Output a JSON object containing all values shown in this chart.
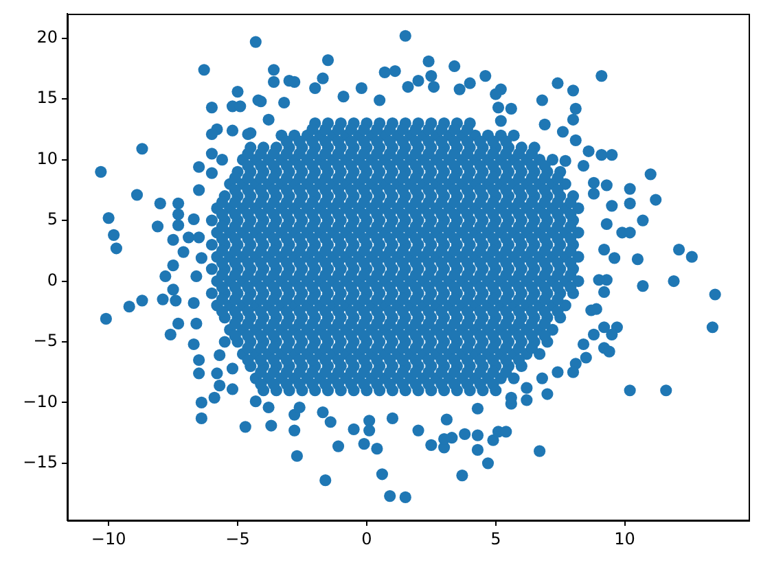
{
  "chart_data": {
    "type": "scatter",
    "color": "#1f77b4",
    "marker": "circle",
    "xlim": [
      -11.6,
      14.8
    ],
    "ylim": [
      -19.7,
      22.0
    ],
    "xticks": [
      {
        "value": -10,
        "label": "−10"
      },
      {
        "value": -5,
        "label": "−5"
      },
      0,
      5,
      10
    ],
    "yticks": [
      {
        "value": -15,
        "label": "−15"
      },
      {
        "value": -10,
        "label": "−10"
      },
      {
        "value": -5,
        "label": "−5"
      },
      0,
      5,
      10,
      15,
      20
    ],
    "x": [
      -2,
      -1.5,
      -1,
      -0.5,
      0,
      0.5,
      1,
      1.5,
      2,
      2.5,
      3,
      3.5,
      4,
      -3.3,
      -2.8,
      -2.3,
      -1.8,
      -1.3,
      -0.8,
      -0.3,
      0.2,
      0.7,
      1.2,
      1.7,
      2.2,
      2.7,
      3.2,
      3.7,
      4.2,
      4.7,
      5.2,
      5.7,
      -4.5,
      -4,
      -3.5,
      -3,
      -2.5,
      -2,
      -1.5,
      -1,
      -0.5,
      0,
      0.5,
      1,
      1.5,
      2,
      2.5,
      3,
      3.5,
      4,
      4.5,
      5,
      5.5,
      6,
      6.5,
      -4.8,
      -4.3,
      -3.8,
      -3.3,
      -2.8,
      -2.3,
      -1.8,
      -1.3,
      -0.8,
      -0.3,
      0.2,
      0.7,
      1.2,
      1.7,
      2.2,
      2.7,
      3.2,
      3.7,
      4.2,
      4.7,
      5.2,
      5.7,
      6.2,
      6.7,
      7.2,
      -5,
      -4.5,
      -4,
      -3.5,
      -3,
      -2.5,
      -2,
      -1.5,
      -1,
      -0.5,
      0,
      0.5,
      1,
      1.5,
      2,
      2.5,
      3,
      3.5,
      4,
      4.5,
      5,
      5.5,
      6,
      6.5,
      7,
      7.5,
      -5.3,
      -4.8,
      -4.3,
      -3.8,
      -3.3,
      -2.8,
      -2.3,
      -1.8,
      -1.3,
      -0.8,
      -0.3,
      0.2,
      0.7,
      1.2,
      1.7,
      2.2,
      2.7,
      3.2,
      3.7,
      4.2,
      4.7,
      5.2,
      5.7,
      6.2,
      6.7,
      7.2,
      7.7,
      -5.5,
      -5,
      -4.5,
      -4,
      -3.5,
      -3,
      -2.5,
      -2,
      -1.5,
      -1,
      -0.5,
      0,
      0.5,
      1,
      1.5,
      2,
      2.5,
      3,
      3.5,
      4,
      4.5,
      5,
      5.5,
      6,
      6.5,
      7,
      7.5,
      8,
      -5.8,
      -5.3,
      -4.8,
      -4.3,
      -3.8,
      -3.3,
      -2.8,
      -2.3,
      -1.8,
      -1.3,
      -0.8,
      -0.3,
      0.2,
      0.7,
      1.2,
      1.7,
      2.2,
      2.7,
      3.2,
      3.7,
      4.2,
      4.7,
      5.2,
      5.7,
      6.2,
      6.7,
      7.2,
      7.7,
      8.2,
      -6,
      -5.5,
      -5,
      -4.5,
      -4,
      -3.5,
      -3,
      -2.5,
      -2,
      -1.5,
      -1,
      -0.5,
      0,
      0.5,
      1,
      1.5,
      2,
      2.5,
      3,
      3.5,
      4,
      4.5,
      5,
      5.5,
      6,
      6.5,
      7,
      7.5,
      8,
      -5.8,
      -5.3,
      -4.8,
      -4.3,
      -3.8,
      -3.3,
      -2.8,
      -2.3,
      -1.8,
      -1.3,
      -0.8,
      -0.3,
      0.2,
      0.7,
      1.2,
      1.7,
      2.2,
      2.7,
      3.2,
      3.7,
      4.2,
      4.7,
      5.2,
      5.7,
      6.2,
      6.7,
      7.2,
      7.7,
      8.2,
      -6,
      -5.5,
      -5,
      -4.5,
      -4,
      -3.5,
      -3,
      -2.5,
      -2,
      -1.5,
      -1,
      -0.5,
      0,
      0.5,
      1,
      1.5,
      2,
      2.5,
      3,
      3.5,
      4,
      4.5,
      5,
      5.5,
      6,
      6.5,
      7,
      7.5,
      8,
      -5.8,
      -5.3,
      -4.8,
      -4.3,
      -3.8,
      -3.3,
      -2.8,
      -2.3,
      -1.8,
      -1.3,
      -0.8,
      -0.3,
      0.2,
      0.7,
      1.2,
      1.7,
      2.2,
      2.7,
      3.2,
      3.7,
      4.2,
      4.7,
      5.2,
      5.7,
      6.2,
      6.7,
      7.2,
      7.7,
      8.2,
      -6,
      -5.5,
      -5,
      -4.5,
      -4,
      -3.5,
      -3,
      -2.5,
      -2,
      -1.5,
      -1,
      -0.5,
      0,
      0.5,
      1,
      1.5,
      2,
      2.5,
      3,
      3.5,
      4,
      4.5,
      5,
      5.5,
      6,
      6.5,
      7,
      7.5,
      8,
      -5.8,
      -5.3,
      -4.8,
      -4.3,
      -3.8,
      -3.3,
      -2.8,
      -2.3,
      -1.8,
      -1.3,
      -0.8,
      -0.3,
      0.2,
      0.7,
      1.2,
      1.7,
      2.2,
      2.7,
      3.2,
      3.7,
      4.2,
      4.7,
      5.2,
      5.7,
      6.2,
      6.7,
      7.2,
      7.7,
      8.2,
      -6,
      -5.5,
      -5,
      -4.5,
      -4,
      -3.5,
      -3,
      -2.5,
      -2,
      -1.5,
      -1,
      -0.5,
      0,
      0.5,
      1,
      1.5,
      2,
      2.5,
      3,
      3.5,
      4,
      4.5,
      5,
      5.5,
      6,
      6.5,
      7,
      7.5,
      8,
      -5.8,
      -5.3,
      -4.8,
      -4.3,
      -3.8,
      -3.3,
      -2.8,
      -2.3,
      -1.8,
      -1.3,
      -0.8,
      -0.3,
      0.2,
      0.7,
      1.2,
      1.7,
      2.2,
      2.7,
      3.2,
      3.7,
      4.2,
      4.7,
      5.2,
      5.7,
      6.2,
      6.7,
      7.2,
      7.7,
      -5.5,
      -5,
      -4.5,
      -4,
      -3.5,
      -3,
      -2.5,
      -2,
      -1.5,
      -1,
      -0.5,
      0,
      0.5,
      1,
      1.5,
      2,
      2.5,
      3,
      3.5,
      4,
      4.5,
      5,
      5.5,
      6,
      6.5,
      7,
      7.5,
      -5.3,
      -4.8,
      -4.3,
      -3.8,
      -3.3,
      -2.8,
      -2.3,
      -1.8,
      -1.3,
      -0.8,
      -0.3,
      0.2,
      0.7,
      1.2,
      1.7,
      2.2,
      2.7,
      3.2,
      3.7,
      4.2,
      4.7,
      5.2,
      5.7,
      6.2,
      6.7,
      7.2,
      -5.5,
      -5,
      -4.5,
      -4,
      -3.5,
      -3,
      -2.5,
      -2,
      -1.5,
      -1,
      -0.5,
      0,
      0.5,
      1,
      1.5,
      2,
      2.5,
      3,
      3.5,
      4,
      4.5,
      5,
      5.5,
      6,
      6.5,
      7,
      -4.8,
      -4.3,
      -3.8,
      -3.3,
      -2.8,
      -2.3,
      -1.8,
      -1.3,
      -0.8,
      -0.3,
      0.2,
      0.7,
      1.2,
      1.7,
      2.2,
      2.7,
      3.2,
      3.7,
      4.2,
      4.7,
      5.2,
      5.7,
      6.2,
      6.7,
      -4.5,
      -4,
      -3.5,
      -3,
      -2.5,
      -2,
      -1.5,
      -1,
      -0.5,
      0,
      0.5,
      1,
      1.5,
      2,
      2.5,
      3,
      3.5,
      4,
      4.5,
      5,
      5.5,
      6,
      -4.3,
      -3.8,
      -3.3,
      -2.8,
      -2.3,
      -1.8,
      -1.3,
      -0.8,
      -0.3,
      0.2,
      0.7,
      1.2,
      1.7,
      2.2,
      2.7,
      3.2,
      3.7,
      4.2,
      4.7,
      5.2,
      5.7,
      -4,
      -3.5,
      -3,
      -2.5,
      -2,
      -1.5,
      -1,
      -0.5,
      0,
      0.5,
      1,
      1.5,
      2,
      2.5,
      3,
      3.5,
      4,
      4.5,
      5,
      -10.3,
      -8.7,
      -8.9,
      -8,
      -10,
      -9.8,
      -9.7,
      -8.1,
      -6.3,
      -4.3,
      -6,
      -5,
      -5.2,
      -4.9,
      -4.2,
      -5.8,
      -6,
      -5.2,
      -4.5,
      -6,
      -5.6,
      -6.5,
      -6,
      -6.5,
      -7.3,
      -7.3,
      -7.3,
      -6.7,
      -7.5,
      -6.9,
      -6.5,
      -7.1,
      -7.5,
      -7.8,
      -6.6,
      -6.4,
      -10.1,
      -9.2,
      -8.7,
      -7.9,
      -7.4,
      -7.5,
      -7.3,
      -7.6,
      -6.7,
      -6.6,
      -6.7,
      -6.5,
      -6.5,
      -5.8,
      -5.7,
      -5.9,
      -6.4,
      -6.4,
      -5.2,
      -4.7,
      -4.3,
      -5.2,
      -5.7,
      -3.8,
      -3.7,
      -2.8,
      -2.7,
      -2.8,
      -2.6,
      -1.6,
      -1.7,
      -1.4,
      -1.1,
      -0.5,
      -0.1,
      0.1,
      0.1,
      0.4,
      0.6,
      0.9,
      1.5,
      1,
      2,
      2.5,
      3,
      3,
      3.3,
      3.8,
      3.7,
      4.3,
      4.3,
      4.7,
      4.9,
      5.1,
      5.4,
      3.1,
      4.3,
      5.6,
      1.5,
      -1.5,
      -3.6,
      -3.6,
      -3,
      -2.8,
      -1.7,
      -2,
      -4.1,
      -3.2,
      -0.2,
      0.7,
      1.1,
      2.4,
      2.5,
      3.4,
      4.6,
      4,
      3.6,
      5.2,
      5,
      5.1,
      5.6,
      5.2,
      2,
      1.6,
      -0.9,
      0.5,
      2.6,
      -4.6,
      -3.8,
      9.1,
      7.4,
      8,
      6.8,
      8.1,
      8,
      6.9,
      7.6,
      8.1,
      8.6,
      9.1,
      9.5,
      7.7,
      8.4,
      11,
      10.2,
      11.2,
      10.2,
      10.7,
      8.8,
      9.3,
      9.5,
      8.8,
      9.9,
      10.2,
      9.3,
      12.1,
      12.6,
      10.5,
      9.6,
      9.2,
      11.9,
      10.7,
      9.3,
      9,
      13.5,
      13.4,
      10.2,
      11.6,
      6.7,
      9.2,
      9.7,
      9.5,
      9.2,
      8.8,
      9.2,
      9.4,
      8.5,
      8.4,
      8.1,
      8,
      7.4,
      6.8,
      7,
      6.2,
      6.2,
      5.6,
      8.7,
      8.9,
      -2.1,
      -1.6,
      -1.1,
      -0.6,
      -0.1,
      0.4,
      0.9,
      1.4,
      1.9,
      2.4,
      2.9,
      3.4,
      3.9,
      -3.1,
      -2.6,
      -2.1,
      -1.6,
      -1.1,
      -0.6,
      -0.1,
      0.4,
      0.9,
      1.4,
      1.9,
      2.4,
      2.9,
      3.4,
      3.9,
      4.4,
      4.9,
      5.4,
      -4.6,
      -4.1,
      -3.6,
      -3.1,
      -2.6,
      -2.1,
      -1.6,
      -1.1,
      -0.6,
      -0.1,
      0.4,
      0.9,
      1.4,
      1.9,
      2.4,
      2.9,
      3.4,
      3.9,
      4.4,
      4.9,
      5.4,
      5.9,
      6.4,
      -4.6,
      -4.1,
      -3.6,
      -3.1,
      -2.6,
      -2.1,
      -1.6,
      -1.1,
      -0.6,
      -0.1,
      0.4,
      0.9,
      1.4,
      1.9,
      2.4,
      2.9,
      3.4,
      3.9,
      4.4,
      4.9,
      5.4,
      5.9,
      6.4,
      6.9,
      -5.1,
      -4.6,
      -4.1,
      -3.6,
      -3.1,
      -2.6,
      -2.1,
      -1.6,
      -1.1,
      -0.6,
      -0.1,
      0.4,
      0.9,
      1.4,
      1.9,
      2.4,
      2.9,
      3.4,
      3.9,
      4.4,
      4.9,
      5.4,
      5.9,
      6.4,
      6.9,
      7.4,
      -5.1,
      -4.6,
      -4.1,
      -3.6,
      -3.1,
      -2.6,
      -2.1,
      -1.6,
      -1.1,
      -0.6,
      -0.1,
      0.4,
      0.9,
      1.4,
      1.9,
      2.4,
      2.9,
      3.4,
      3.9,
      4.4,
      4.9,
      5.4,
      5.9,
      6.4,
      6.9,
      7.4,
      -5.6,
      -5.1,
      -4.6,
      -4.1,
      -3.6,
      -3.1,
      -2.6,
      -2.1,
      -1.6,
      -1.1,
      -0.6,
      -0.1,
      0.4,
      0.9,
      1.4,
      1.9,
      2.4,
      2.9,
      3.4,
      3.9,
      4.4,
      4.9,
      5.4,
      5.9,
      6.4,
      6.9,
      7.4,
      7.9,
      -5.6,
      -5.1,
      -4.6,
      -4.1,
      -3.6,
      -3.1,
      -2.6,
      -2.1,
      -1.6,
      -1.1,
      -0.6,
      -0.1,
      0.4,
      0.9,
      1.4,
      1.9,
      2.4,
      2.9,
      3.4,
      3.9,
      4.4,
      4.9,
      5.4,
      5.9,
      6.4,
      6.9,
      7.4,
      7.9,
      -5.6,
      -5.1,
      -4.6,
      -4.1,
      -3.6,
      -3.1,
      -2.6,
      -2.1,
      -1.6,
      -1.1,
      -0.6,
      -0.1,
      0.4,
      0.9,
      1.4,
      1.9,
      2.4,
      2.9,
      3.4,
      3.9,
      4.4,
      4.9,
      5.4,
      5.9,
      6.4,
      6.9,
      7.4,
      7.9,
      -5.6,
      -5.1,
      -4.6,
      -4.1,
      -3.6,
      -3.1,
      -2.6,
      -2.1,
      -1.6,
      -1.1,
      -0.6,
      -0.1,
      0.4,
      0.9,
      1.4,
      1.9,
      2.4,
      2.9,
      3.4,
      3.9,
      4.4,
      4.9,
      5.4,
      5.9,
      6.4,
      6.9,
      7.4,
      7.9,
      -5.6,
      -5.1,
      -4.6,
      -4.1,
      -3.6,
      -3.1,
      -2.6,
      -2.1,
      -1.6,
      -1.1,
      -0.6,
      -0.1,
      0.4,
      0.9,
      1.4,
      1.9,
      2.4,
      2.9,
      3.4,
      3.9,
      4.4,
      4.9,
      5.4,
      5.9,
      6.4,
      6.9,
      7.4,
      7.9,
      -5.6,
      -5.1,
      -4.6,
      -4.1,
      -3.6,
      -3.1,
      -2.6,
      -2.1,
      -1.6,
      -1.1,
      -0.6,
      -0.1,
      0.4,
      0.9,
      1.4,
      1.9,
      2.4,
      2.9,
      3.4,
      3.9,
      4.4,
      4.9,
      5.4,
      5.9,
      6.4,
      6.9,
      7.4,
      7.9,
      -5.6,
      -5.1,
      -4.6,
      -4.1,
      -3.6,
      -3.1,
      -2.6,
      -2.1,
      -1.6,
      -1.1,
      -0.6,
      -0.1,
      0.4,
      0.9,
      1.4,
      1.9,
      2.4,
      2.9,
      3.4,
      3.9,
      4.4,
      4.9,
      5.4,
      5.9,
      6.4,
      6.9,
      7.4,
      7.9,
      -5.6,
      -5.1,
      -4.6,
      -4.1,
      -3.6,
      -3.1,
      -2.6,
      -2.1,
      -1.6,
      -1.1,
      -0.6,
      -0.1,
      0.4,
      0.9,
      1.4,
      1.9,
      2.4,
      2.9,
      3.4,
      3.9,
      4.4,
      4.9,
      5.4,
      5.9,
      6.4,
      6.9,
      7.4,
      7.9,
      -5.6,
      -5.1,
      -4.6,
      -4.1,
      -3.6,
      -3.1,
      -2.6,
      -2.1,
      -1.6,
      -1.1,
      -0.6,
      -0.1,
      0.4,
      0.9,
      1.4,
      1.9,
      2.4,
      2.9,
      3.4,
      3.9,
      4.4,
      4.9,
      5.4,
      5.9,
      6.4,
      6.9,
      7.4,
      -5.6,
      -5.1,
      -4.6,
      -4.1,
      -3.6,
      -3.1,
      -2.6,
      -2.1,
      -1.6,
      -1.1,
      -0.6,
      -0.1,
      0.4,
      0.9,
      1.4,
      1.9,
      2.4,
      2.9,
      3.4,
      3.9,
      4.4,
      4.9,
      5.4,
      5.9,
      6.4,
      6.9,
      7.4,
      -5.1,
      -4.6,
      -4.1,
      -3.6,
      -3.1,
      -2.6,
      -2.1,
      -1.6,
      -1.1,
      -0.6,
      -0.1,
      0.4,
      0.9,
      1.4,
      1.9,
      2.4,
      2.9,
      3.4,
      3.9,
      4.4,
      4.9,
      5.4,
      5.9,
      6.4,
      6.9,
      -5.1,
      -4.6,
      -4.1,
      -3.6,
      -3.1,
      -2.6,
      -2.1,
      -1.6,
      -1.1,
      -0.6,
      -0.1,
      0.4,
      0.9,
      1.4,
      1.9,
      2.4,
      2.9,
      3.4,
      3.9,
      4.4,
      4.9,
      5.4,
      5.9,
      6.4,
      6.9,
      -4.6,
      -4.1,
      -3.6,
      -3.1,
      -2.6,
      -2.1,
      -1.6,
      -1.1,
      -0.6,
      -0.1,
      0.4,
      0.9,
      1.4,
      1.9,
      2.4,
      2.9,
      3.4,
      3.9,
      4.4,
      4.9,
      5.4,
      5.9,
      6.4,
      -4.6,
      -4.1,
      -3.6,
      -3.1,
      -2.6,
      -2.1,
      -1.6,
      -1.1,
      -0.6,
      -0.1,
      0.4,
      0.9,
      1.4,
      1.9,
      2.4,
      2.9,
      3.4,
      3.9,
      4.4,
      4.9,
      5.4,
      5.9,
      -4.1,
      -3.6,
      -3.1,
      -2.6,
      -2.1,
      -1.6,
      -1.1,
      -0.6,
      -0.1,
      0.4,
      0.9,
      1.4,
      1.9,
      2.4,
      2.9,
      3.4,
      3.9,
      4.4,
      4.9,
      5.4,
      -4.1,
      -3.6,
      -3.1,
      -2.6,
      -2.1,
      -1.6,
      -1.1,
      -0.6,
      -0.1,
      0.4,
      0.9,
      1.4,
      1.9,
      2.4,
      2.9,
      3.4,
      3.9,
      4.4,
      4.9
    ],
    "values": [
      13,
      13,
      13,
      13,
      13,
      13,
      13,
      13,
      13,
      13,
      13,
      13,
      13,
      12,
      12,
      12,
      12,
      12,
      12,
      12,
      12,
      12,
      12,
      12,
      12,
      12,
      12,
      12,
      12,
      12,
      12,
      12,
      11,
      11,
      11,
      11,
      11,
      11,
      11,
      11,
      11,
      11,
      11,
      11,
      11,
      11,
      11,
      11,
      11,
      11,
      11,
      11,
      11,
      11,
      11,
      10,
      10,
      10,
      10,
      10,
      10,
      10,
      10,
      10,
      10,
      10,
      10,
      10,
      10,
      10,
      10,
      10,
      10,
      10,
      10,
      10,
      10,
      10,
      10,
      10,
      9,
      9,
      9,
      9,
      9,
      9,
      9,
      9,
      9,
      9,
      9,
      9,
      9,
      9,
      9,
      9,
      9,
      9,
      9,
      9,
      9,
      9,
      9,
      9,
      9,
      9,
      8,
      8,
      8,
      8,
      8,
      8,
      8,
      8,
      8,
      8,
      8,
      8,
      8,
      8,
      8,
      8,
      8,
      8,
      8,
      8,
      8,
      8,
      8,
      8,
      8,
      8,
      8,
      7,
      7,
      7,
      7,
      7,
      7,
      7,
      7,
      7,
      7,
      7,
      7,
      7,
      7,
      7,
      7,
      7,
      7,
      7,
      7,
      7,
      7,
      7,
      7,
      7,
      7,
      7,
      7,
      6,
      6,
      6,
      6,
      6,
      6,
      6,
      6,
      6,
      6,
      6,
      6,
      6,
      6,
      6,
      6,
      6,
      6,
      6,
      6,
      6,
      6,
      6,
      6,
      6,
      6,
      6,
      6,
      6,
      5,
      5,
      5,
      5,
      5,
      5,
      5,
      5,
      5,
      5,
      5,
      5,
      5,
      5,
      5,
      5,
      5,
      5,
      5,
      5,
      5,
      5,
      5,
      5,
      5,
      5,
      5,
      5,
      5,
      4,
      4,
      4,
      4,
      4,
      4,
      4,
      4,
      4,
      4,
      4,
      4,
      4,
      4,
      4,
      4,
      4,
      4,
      4,
      4,
      4,
      4,
      4,
      4,
      4,
      4,
      4,
      4,
      4,
      3,
      3,
      3,
      3,
      3,
      3,
      3,
      3,
      3,
      3,
      3,
      3,
      3,
      3,
      3,
      3,
      3,
      3,
      3,
      3,
      3,
      3,
      3,
      3,
      3,
      3,
      3,
      3,
      3,
      2,
      2,
      2,
      2,
      2,
      2,
      2,
      2,
      2,
      2,
      2,
      2,
      2,
      2,
      2,
      2,
      2,
      2,
      2,
      2,
      2,
      2,
      2,
      2,
      2,
      2,
      2,
      2,
      2,
      1,
      1,
      1,
      1,
      1,
      1,
      1,
      1,
      1,
      1,
      1,
      1,
      1,
      1,
      1,
      1,
      1,
      1,
      1,
      1,
      1,
      1,
      1,
      1,
      1,
      1,
      1,
      1,
      1,
      0,
      0,
      0,
      0,
      0,
      0,
      0,
      0,
      0,
      0,
      0,
      0,
      0,
      0,
      0,
      0,
      0,
      0,
      0,
      0,
      0,
      0,
      0,
      0,
      0,
      0,
      0,
      0,
      0,
      -1,
      -1,
      -1,
      -1,
      -1,
      -1,
      -1,
      -1,
      -1,
      -1,
      -1,
      -1,
      -1,
      -1,
      -1,
      -1,
      -1,
      -1,
      -1,
      -1,
      -1,
      -1,
      -1,
      -1,
      -1,
      -1,
      -1,
      -1,
      -1,
      -2,
      -2,
      -2,
      -2,
      -2,
      -2,
      -2,
      -2,
      -2,
      -2,
      -2,
      -2,
      -2,
      -2,
      -2,
      -2,
      -2,
      -2,
      -2,
      -2,
      -2,
      -2,
      -2,
      -2,
      -2,
      -2,
      -2,
      -2,
      -3,
      -3,
      -3,
      -3,
      -3,
      -3,
      -3,
      -3,
      -3,
      -3,
      -3,
      -3,
      -3,
      -3,
      -3,
      -3,
      -3,
      -3,
      -3,
      -3,
      -3,
      -3,
      -3,
      -3,
      -3,
      -3,
      -3,
      -4,
      -4,
      -4,
      -4,
      -4,
      -4,
      -4,
      -4,
      -4,
      -4,
      -4,
      -4,
      -4,
      -4,
      -4,
      -4,
      -4,
      -4,
      -4,
      -4,
      -4,
      -4,
      -4,
      -4,
      -4,
      -4,
      -5,
      -5,
      -5,
      -5,
      -5,
      -5,
      -5,
      -5,
      -5,
      -5,
      -5,
      -5,
      -5,
      -5,
      -5,
      -5,
      -5,
      -5,
      -5,
      -5,
      -5,
      -5,
      -5,
      -5,
      -5,
      -5,
      -6,
      -6,
      -6,
      -6,
      -6,
      -6,
      -6,
      -6,
      -6,
      -6,
      -6,
      -6,
      -6,
      -6,
      -6,
      -6,
      -6,
      -6,
      -6,
      -6,
      -6,
      -6,
      -6,
      -6,
      -7,
      -7,
      -7,
      -7,
      -7,
      -7,
      -7,
      -7,
      -7,
      -7,
      -7,
      -7,
      -7,
      -7,
      -7,
      -7,
      -7,
      -7,
      -7,
      -7,
      -7,
      -7,
      -8,
      -8,
      -8,
      -8,
      -8,
      -8,
      -8,
      -8,
      -8,
      -8,
      -8,
      -8,
      -8,
      -8,
      -8,
      -8,
      -8,
      -8,
      -8,
      -8,
      -8,
      -9,
      -9,
      -9,
      -9,
      -9,
      -9,
      -9,
      -9,
      -9,
      -9,
      -9,
      -9,
      -9,
      -9,
      -9,
      -9,
      -9,
      -9,
      -9,
      9,
      10.9,
      7.1,
      6.4,
      5.2,
      3.8,
      2.7,
      4.5,
      17.4,
      19.7,
      14.3,
      15.6,
      14.4,
      14.4,
      14.9,
      12.5,
      12.1,
      12.4,
      12.2,
      10.5,
      10,
      9.4,
      8.9,
      7.5,
      6.4,
      5.5,
      4.6,
      5.1,
      3.4,
      3.6,
      3.6,
      2.4,
      1.3,
      0.4,
      0.4,
      1.9,
      -3.1,
      -2.1,
      -1.6,
      -1.5,
      -1.6,
      -0.7,
      -3.5,
      -4.4,
      -1.8,
      -3.5,
      -5.2,
      -6.5,
      -7.6,
      -7.6,
      -8.6,
      -9.6,
      -10,
      -11.3,
      -8.9,
      -12,
      -9.9,
      -7.2,
      -6.1,
      -10.4,
      -11.9,
      -12.3,
      -14.4,
      -11,
      -10.4,
      -16.4,
      -10.8,
      -11.6,
      -13.6,
      -12.2,
      -13.4,
      -11.5,
      -12.3,
      -13.8,
      -15.9,
      -17.7,
      -17.8,
      -11.3,
      -12.3,
      -13.5,
      -13.7,
      -13,
      -12.9,
      -12.6,
      -16,
      -13.9,
      -12.7,
      -15,
      -13.1,
      -12.4,
      -12.4,
      -11.4,
      -10.5,
      -10.1,
      20.2,
      18.2,
      17.4,
      16.4,
      16.5,
      16.4,
      16.7,
      15.9,
      14.8,
      14.7,
      15.9,
      17.2,
      17.3,
      18.1,
      16.9,
      17.7,
      16.9,
      16.3,
      15.8,
      15.8,
      15.4,
      14.3,
      14.2,
      13.2,
      16.5,
      16,
      15.2,
      14.9,
      16,
      12.1,
      13.3,
      16.9,
      16.3,
      15.7,
      14.9,
      14.2,
      13.3,
      12.9,
      12.3,
      11.6,
      10.7,
      10.4,
      10.4,
      9.9,
      9.5,
      8.8,
      7.6,
      6.7,
      6.4,
      5,
      8.1,
      7.9,
      6.2,
      7.2,
      4,
      4,
      4.7,
      2.6,
      2,
      1.8,
      1.9,
      2.6,
      0,
      -0.4,
      0.1,
      0.1,
      -1.1,
      -3.8,
      -9,
      -9,
      -14,
      -0.9,
      -3.8,
      -4.4,
      -3.8,
      -4.4,
      -5.5,
      -5.8,
      -6.3,
      -5.2,
      -6.8,
      -7.5,
      -7.5,
      -8,
      -9.3,
      -8.8,
      -9.8,
      -9.6,
      -2.4,
      -2.3,
      12.5,
      12.5,
      12.5,
      12.5,
      12.5,
      12.5,
      12.5,
      12.5,
      12.5,
      12.5,
      12.5,
      12.5,
      12.5,
      11.5,
      11.5,
      11.5,
      11.5,
      11.5,
      11.5,
      11.5,
      11.5,
      11.5,
      11.5,
      11.5,
      11.5,
      11.5,
      11.5,
      11.5,
      11.5,
      11.5,
      11.5,
      10.5,
      10.5,
      10.5,
      10.5,
      10.5,
      10.5,
      10.5,
      10.5,
      10.5,
      10.5,
      10.5,
      10.5,
      10.5,
      10.5,
      10.5,
      10.5,
      10.5,
      10.5,
      10.5,
      10.5,
      10.5,
      10.5,
      10.5,
      9.5,
      9.5,
      9.5,
      9.5,
      9.5,
      9.5,
      9.5,
      9.5,
      9.5,
      9.5,
      9.5,
      9.5,
      9.5,
      9.5,
      9.5,
      9.5,
      9.5,
      9.5,
      9.5,
      9.5,
      9.5,
      9.5,
      9.5,
      9.5,
      8.5,
      8.5,
      8.5,
      8.5,
      8.5,
      8.5,
      8.5,
      8.5,
      8.5,
      8.5,
      8.5,
      8.5,
      8.5,
      8.5,
      8.5,
      8.5,
      8.5,
      8.5,
      8.5,
      8.5,
      8.5,
      8.5,
      8.5,
      8.5,
      8.5,
      8.5,
      7.5,
      7.5,
      7.5,
      7.5,
      7.5,
      7.5,
      7.5,
      7.5,
      7.5,
      7.5,
      7.5,
      7.5,
      7.5,
      7.5,
      7.5,
      7.5,
      7.5,
      7.5,
      7.5,
      7.5,
      7.5,
      7.5,
      7.5,
      7.5,
      7.5,
      7.5,
      6.5,
      6.5,
      6.5,
      6.5,
      6.5,
      6.5,
      6.5,
      6.5,
      6.5,
      6.5,
      6.5,
      6.5,
      6.5,
      6.5,
      6.5,
      6.5,
      6.5,
      6.5,
      6.5,
      6.5,
      6.5,
      6.5,
      6.5,
      6.5,
      6.5,
      6.5,
      6.5,
      6.5,
      5.5,
      5.5,
      5.5,
      5.5,
      5.5,
      5.5,
      5.5,
      5.5,
      5.5,
      5.5,
      5.5,
      5.5,
      5.5,
      5.5,
      5.5,
      5.5,
      5.5,
      5.5,
      5.5,
      5.5,
      5.5,
      5.5,
      5.5,
      5.5,
      5.5,
      5.5,
      5.5,
      5.5,
      4.5,
      4.5,
      4.5,
      4.5,
      4.5,
      4.5,
      4.5,
      4.5,
      4.5,
      4.5,
      4.5,
      4.5,
      4.5,
      4.5,
      4.5,
      4.5,
      4.5,
      4.5,
      4.5,
      4.5,
      4.5,
      4.5,
      4.5,
      4.5,
      4.5,
      4.5,
      4.5,
      4.5,
      3.5,
      3.5,
      3.5,
      3.5,
      3.5,
      3.5,
      3.5,
      3.5,
      3.5,
      3.5,
      3.5,
      3.5,
      3.5,
      3.5,
      3.5,
      3.5,
      3.5,
      3.5,
      3.5,
      3.5,
      3.5,
      3.5,
      3.5,
      3.5,
      3.5,
      3.5,
      3.5,
      3.5,
      2.5,
      2.5,
      2.5,
      2.5,
      2.5,
      2.5,
      2.5,
      2.5,
      2.5,
      2.5,
      2.5,
      2.5,
      2.5,
      2.5,
      2.5,
      2.5,
      2.5,
      2.5,
      2.5,
      2.5,
      2.5,
      2.5,
      2.5,
      2.5,
      2.5,
      2.5,
      2.5,
      2.5,
      1.5,
      1.5,
      1.5,
      1.5,
      1.5,
      1.5,
      1.5,
      1.5,
      1.5,
      1.5,
      1.5,
      1.5,
      1.5,
      1.5,
      1.5,
      1.5,
      1.5,
      1.5,
      1.5,
      1.5,
      1.5,
      1.5,
      1.5,
      1.5,
      1.5,
      1.5,
      1.5,
      1.5,
      0.5,
      0.5,
      0.5,
      0.5,
      0.5,
      0.5,
      0.5,
      0.5,
      0.5,
      0.5,
      0.5,
      0.5,
      0.5,
      0.5,
      0.5,
      0.5,
      0.5,
      0.5,
      0.5,
      0.5,
      0.5,
      0.5,
      0.5,
      0.5,
      0.5,
      0.5,
      0.5,
      0.5,
      -0.5,
      -0.5,
      -0.5,
      -0.5,
      -0.5,
      -0.5,
      -0.5,
      -0.5,
      -0.5,
      -0.5,
      -0.5,
      -0.5,
      -0.5,
      -0.5,
      -0.5,
      -0.5,
      -0.5,
      -0.5,
      -0.5,
      -0.5,
      -0.5,
      -0.5,
      -0.5,
      -0.5,
      -0.5,
      -0.5,
      -0.5,
      -0.5,
      -1.5,
      -1.5,
      -1.5,
      -1.5,
      -1.5,
      -1.5,
      -1.5,
      -1.5,
      -1.5,
      -1.5,
      -1.5,
      -1.5,
      -1.5,
      -1.5,
      -1.5,
      -1.5,
      -1.5,
      -1.5,
      -1.5,
      -1.5,
      -1.5,
      -1.5,
      -1.5,
      -1.5,
      -1.5,
      -1.5,
      -1.5,
      -2.5,
      -2.5,
      -2.5,
      -2.5,
      -2.5,
      -2.5,
      -2.5,
      -2.5,
      -2.5,
      -2.5,
      -2.5,
      -2.5,
      -2.5,
      -2.5,
      -2.5,
      -2.5,
      -2.5,
      -2.5,
      -2.5,
      -2.5,
      -2.5,
      -2.5,
      -2.5,
      -2.5,
      -2.5,
      -2.5,
      -2.5,
      -3.5,
      -3.5,
      -3.5,
      -3.5,
      -3.5,
      -3.5,
      -3.5,
      -3.5,
      -3.5,
      -3.5,
      -3.5,
      -3.5,
      -3.5,
      -3.5,
      -3.5,
      -3.5,
      -3.5,
      -3.5,
      -3.5,
      -3.5,
      -3.5,
      -3.5,
      -3.5,
      -3.5,
      -3.5,
      -4.5,
      -4.5,
      -4.5,
      -4.5,
      -4.5,
      -4.5,
      -4.5,
      -4.5,
      -4.5,
      -4.5,
      -4.5,
      -4.5,
      -4.5,
      -4.5,
      -4.5,
      -4.5,
      -4.5,
      -4.5,
      -4.5,
      -4.5,
      -4.5,
      -4.5,
      -4.5,
      -4.5,
      -4.5,
      -5.5,
      -5.5,
      -5.5,
      -5.5,
      -5.5,
      -5.5,
      -5.5,
      -5.5,
      -5.5,
      -5.5,
      -5.5,
      -5.5,
      -5.5,
      -5.5,
      -5.5,
      -5.5,
      -5.5,
      -5.5,
      -5.5,
      -5.5,
      -5.5,
      -5.5,
      -5.5,
      -6.5,
      -6.5,
      -6.5,
      -6.5,
      -6.5,
      -6.5,
      -6.5,
      -6.5,
      -6.5,
      -6.5,
      -6.5,
      -6.5,
      -6.5,
      -6.5,
      -6.5,
      -6.5,
      -6.5,
      -6.5,
      -6.5,
      -6.5,
      -6.5,
      -6.5,
      -7.5,
      -7.5,
      -7.5,
      -7.5,
      -7.5,
      -7.5,
      -7.5,
      -7.5,
      -7.5,
      -7.5,
      -7.5,
      -7.5,
      -7.5,
      -7.5,
      -7.5,
      -7.5,
      -7.5,
      -7.5,
      -7.5,
      -7.5,
      -8.5,
      -8.5,
      -8.5,
      -8.5,
      -8.5,
      -8.5,
      -8.5,
      -8.5,
      -8.5,
      -8.5,
      -8.5,
      -8.5,
      -8.5,
      -8.5,
      -8.5,
      -8.5,
      -8.5,
      -8.5,
      -8.5
    ]
  }
}
